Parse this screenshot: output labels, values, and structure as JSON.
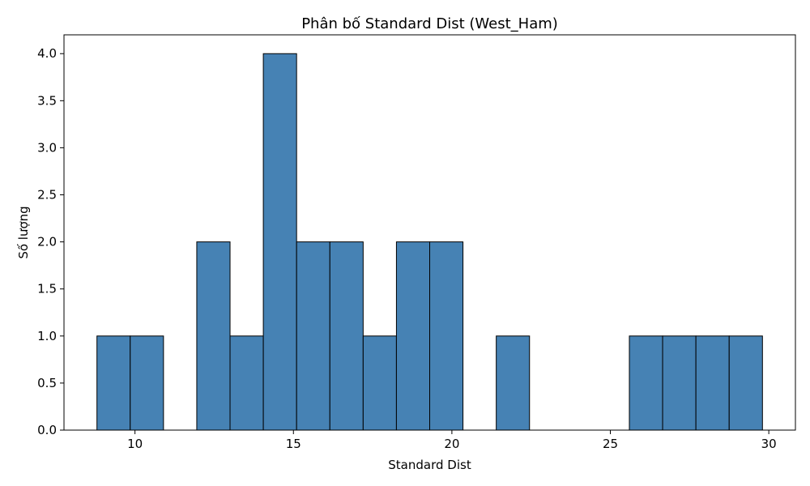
{
  "chart_data": {
    "type": "bar",
    "subtype": "histogram",
    "title": "Phân bố Standard Dist (West_Ham)",
    "xlabel": "Standard Dist",
    "ylabel": "Số lượng",
    "xlim": [
      7.76,
      30.84
    ],
    "ylim": [
      0,
      4.2
    ],
    "xticks": [
      10,
      15,
      20,
      25,
      30
    ],
    "yticks": [
      0.0,
      0.5,
      1.0,
      1.5,
      2.0,
      2.5,
      3.0,
      3.5,
      4.0
    ],
    "bin_start": 8.8,
    "bin_width": 1.05,
    "counts": [
      1,
      1,
      0,
      2,
      1,
      4,
      2,
      2,
      1,
      2,
      2,
      0,
      1,
      0,
      0,
      0,
      1,
      1,
      1,
      1
    ],
    "bar_color": "#4682b4",
    "edge_color": "#000000",
    "grid": false
  }
}
